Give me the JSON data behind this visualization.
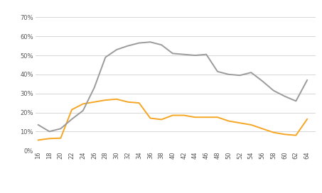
{
  "ages": [
    16,
    18,
    20,
    22,
    24,
    26,
    28,
    30,
    32,
    34,
    36,
    38,
    40,
    42,
    44,
    46,
    48,
    50,
    52,
    54,
    56,
    58,
    60,
    62,
    64
  ],
  "utr1985": [
    0.055,
    0.063,
    0.065,
    0.215,
    0.245,
    0.255,
    0.265,
    0.27,
    0.255,
    0.25,
    0.17,
    0.163,
    0.185,
    0.185,
    0.175,
    0.175,
    0.175,
    0.155,
    0.145,
    0.135,
    0.115,
    0.095,
    0.085,
    0.08,
    0.165
  ],
  "utr2015": [
    0.135,
    0.1,
    0.115,
    0.165,
    0.21,
    0.33,
    0.49,
    0.53,
    0.55,
    0.565,
    0.57,
    0.555,
    0.51,
    0.505,
    0.5,
    0.505,
    0.415,
    0.4,
    0.395,
    0.41,
    0.365,
    0.315,
    0.285,
    0.26,
    0.37
  ],
  "color_1985": "#f5a623",
  "color_2015": "#9b9b9b",
  "ylabel_ticks": [
    0.0,
    0.1,
    0.2,
    0.3,
    0.4,
    0.5,
    0.6,
    0.7
  ],
  "ylabel_labels": [
    "0%",
    "10%",
    "20%",
    "30%",
    "40%",
    "50%",
    "60%",
    "70%"
  ],
  "background_color": "#ffffff",
  "grid_color": "#d0d0d0",
  "linewidth": 1.4,
  "tick_fontsize": 6.0,
  "legend_fontsize": 7.5
}
